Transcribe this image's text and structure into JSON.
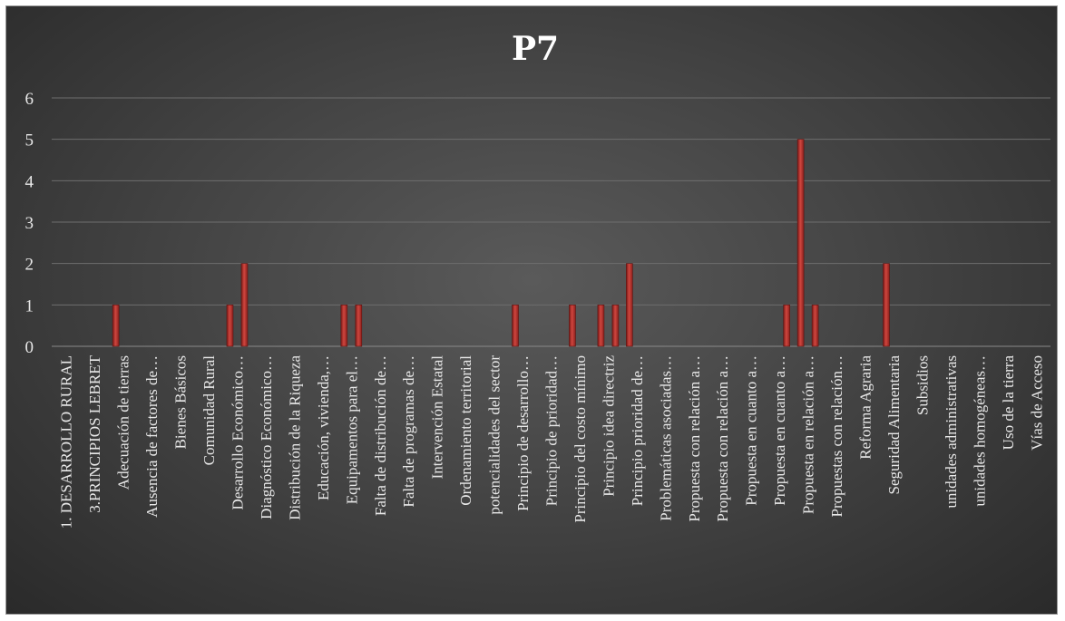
{
  "chart_data": {
    "type": "bar",
    "title": "P7",
    "xlabel": "",
    "ylabel": "",
    "ylim": [
      0,
      6
    ],
    "yticks": [
      "0",
      "1",
      "2",
      "3",
      "4",
      "5",
      "6"
    ],
    "grid": true,
    "bar_color": "#b5312c",
    "categories": [
      "1. DESARROLLO RURAL",
      "3.PRINCIPIOS LEBRET",
      "Adecuación de tierras",
      "Ausencia de factores de…",
      "Bienes Básicos",
      "Comunidad Rural",
      "Desarrollo Económico…",
      "Diagnóstico Económico…",
      "Distribución de la Riqueza",
      "Educación, vivienda,…",
      "Equipamentos para el…",
      "Falta de distribución de…",
      "Falta de programas de…",
      "Intervención Estatal",
      "Ordenamiento territorial",
      "potencialidades del sector",
      "Principio de desarrollo…",
      "Principio de prioridad…",
      "Principio del costo mínimo",
      "Principio idea directriz",
      "Principio prioridad de…",
      "Problemáticas asociadas…",
      "Propuesta con relación a…",
      "Propuesta con relación a…",
      "Propuesta en cuanto a…",
      "Propuesta en cuanto a…",
      "Propuesta en relación a…",
      "Propuestas con relación…",
      "Reforma Agraria",
      "Seguridad Alimentaria",
      "Subsidios",
      "unidades administrativas",
      "unidades homogéneas…",
      "Uso de la tierra",
      "Vías de Acceso"
    ],
    "bars": [
      {
        "category": 2,
        "slot": 0,
        "value": 1
      },
      {
        "category": 6,
        "slot": 0,
        "value": 1
      },
      {
        "category": 6,
        "slot": 1,
        "value": 2
      },
      {
        "category": 10,
        "slot": 0,
        "value": 1
      },
      {
        "category": 10,
        "slot": 1,
        "value": 1
      },
      {
        "category": 16,
        "slot": 0,
        "value": 1
      },
      {
        "category": 18,
        "slot": 0,
        "value": 1
      },
      {
        "category": 19,
        "slot": 0,
        "value": 1
      },
      {
        "category": 19,
        "slot": 1,
        "value": 1
      },
      {
        "category": 20,
        "slot": 0,
        "value": 2
      },
      {
        "category": 25,
        "slot": 1,
        "value": 1
      },
      {
        "category": 26,
        "slot": 0,
        "value": 5
      },
      {
        "category": 26,
        "slot": 1,
        "value": 1
      },
      {
        "category": 29,
        "slot": 0,
        "value": 2
      }
    ]
  }
}
